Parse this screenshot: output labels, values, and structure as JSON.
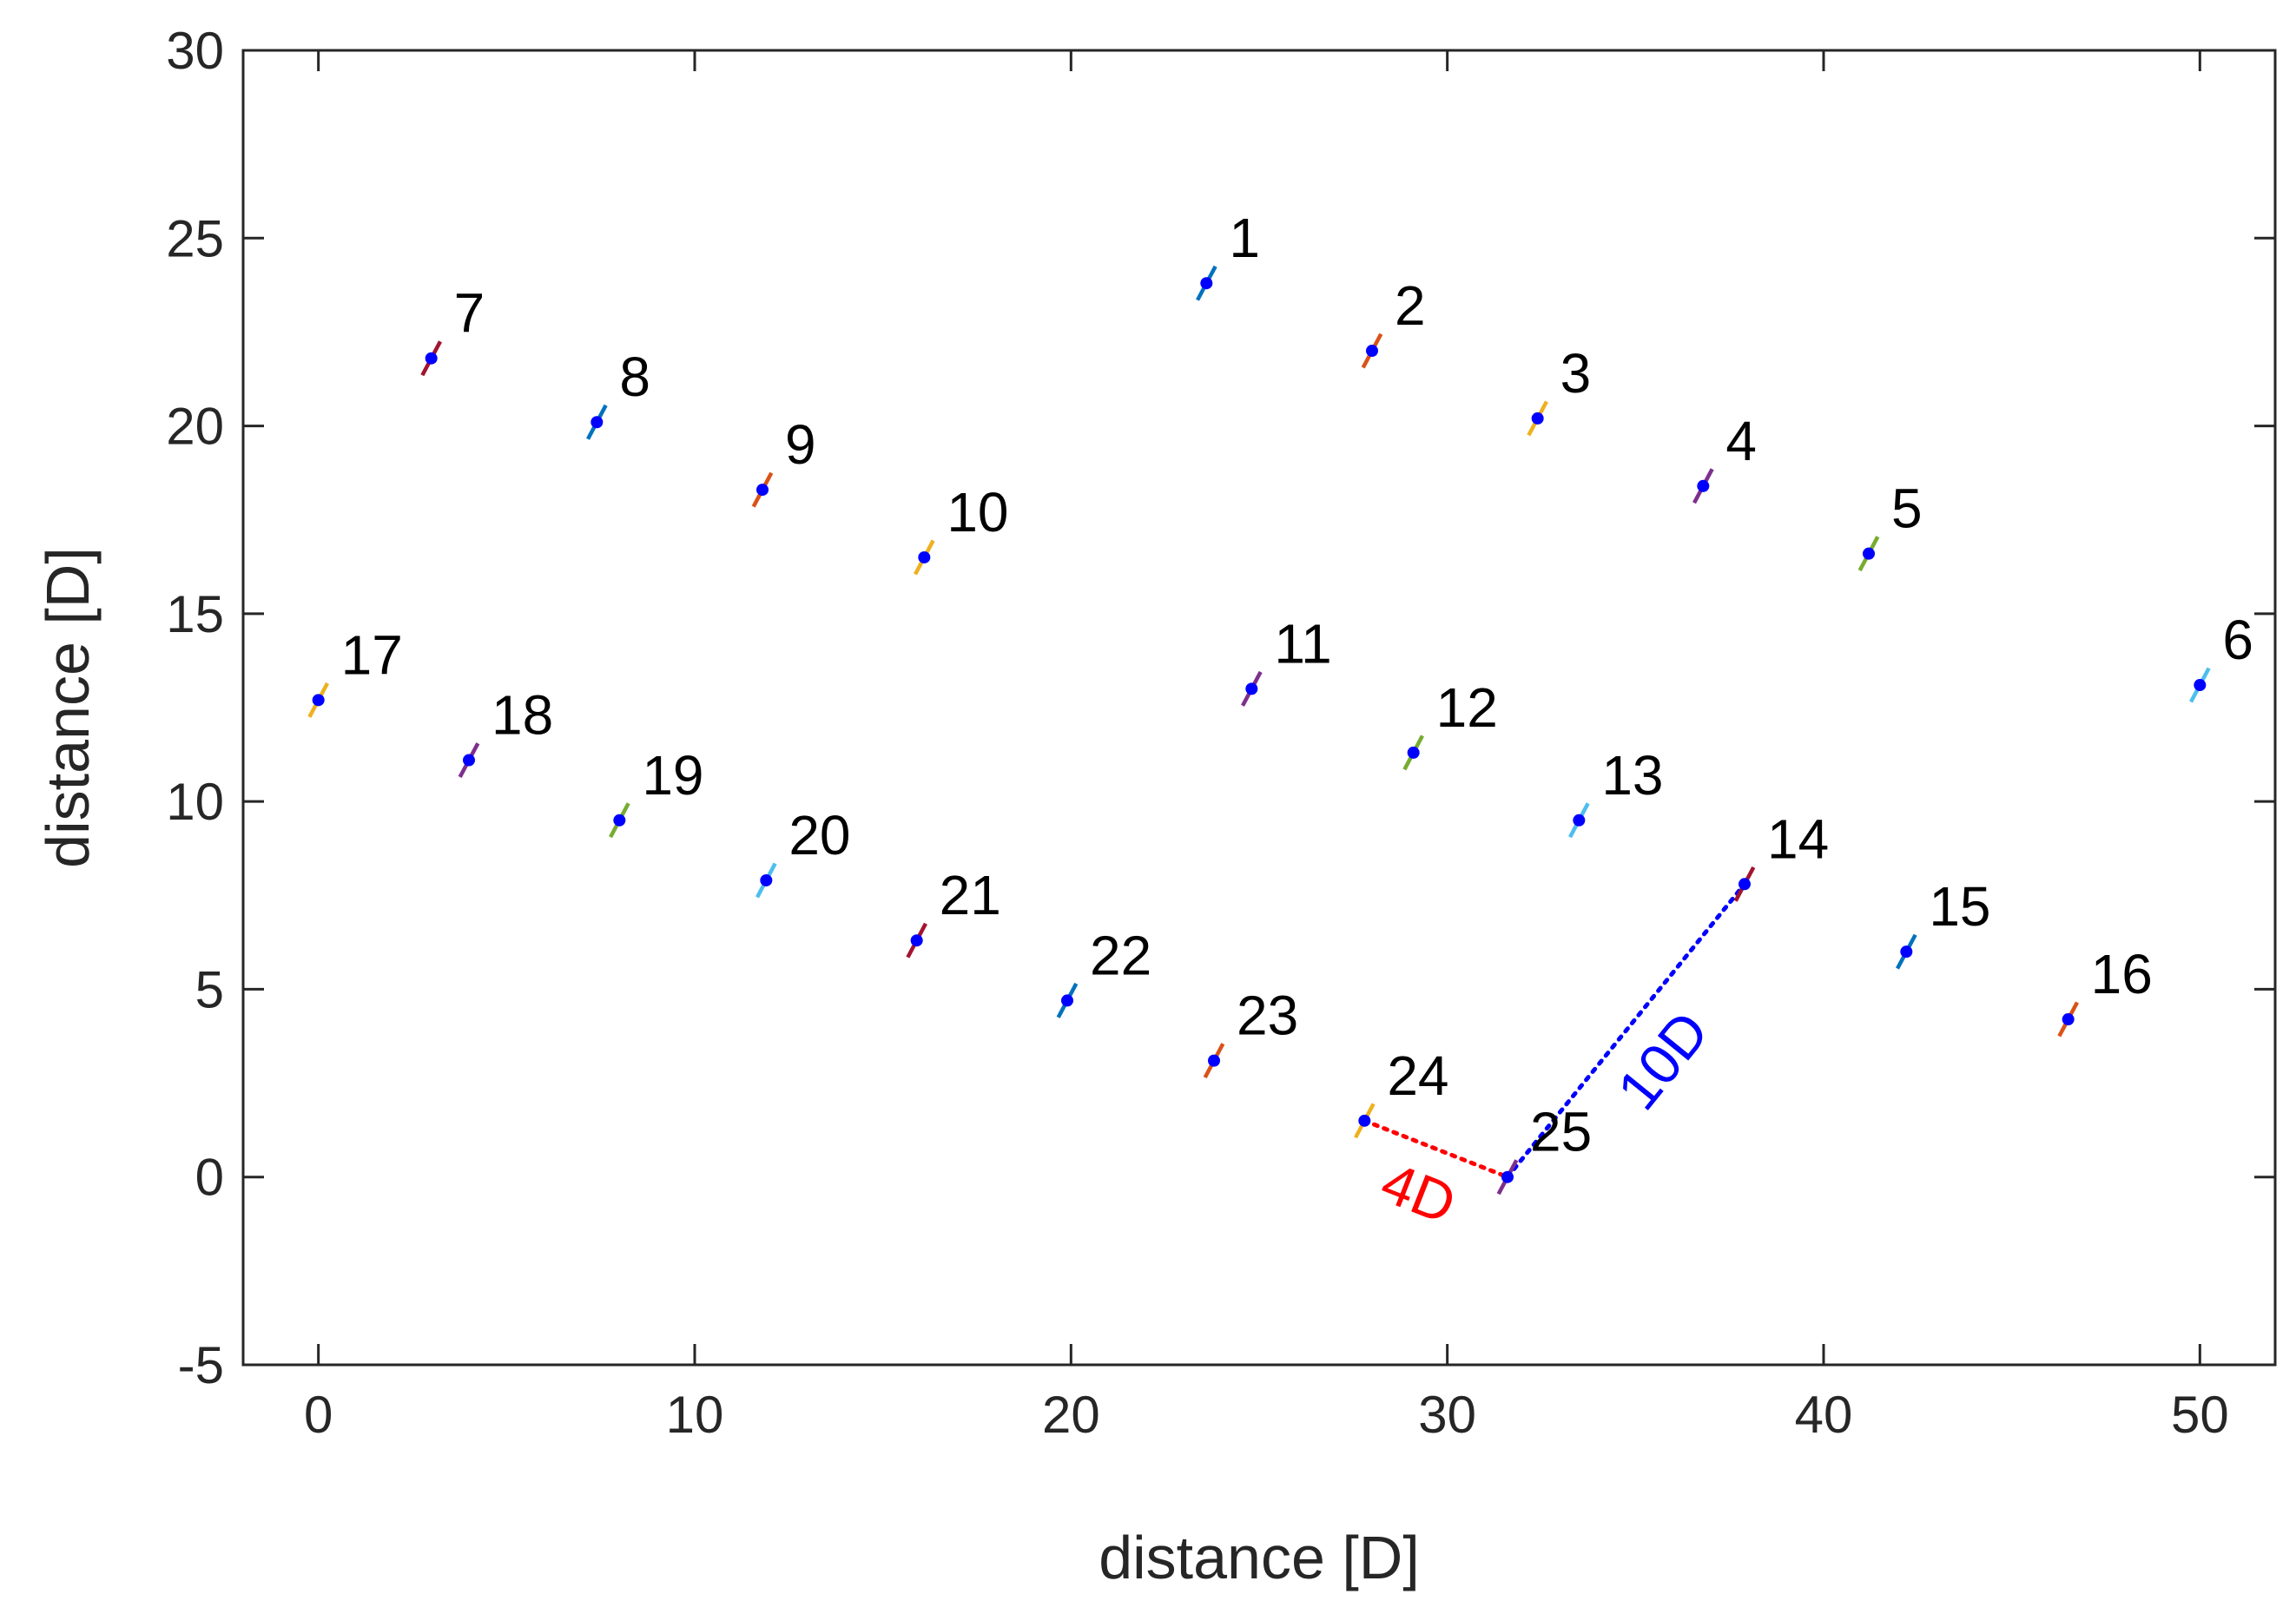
{
  "chart_data": {
    "type": "scatter",
    "xlabel": "distance [D]",
    "ylabel": "distance [D]",
    "xlim": [
      -2,
      52
    ],
    "ylim": [
      -5,
      30
    ],
    "xticks": [
      "0",
      "10",
      "20",
      "30",
      "40",
      "50"
    ],
    "xtick_values": [
      0,
      10,
      20,
      30,
      40,
      50
    ],
    "yticks": [
      "30",
      "25",
      "20",
      "15",
      "10",
      "5",
      "0",
      "-5"
    ],
    "ytick_values": [
      30,
      25,
      20,
      15,
      10,
      5,
      0,
      -5
    ],
    "grid": false,
    "marker_color": "#0000ff",
    "points": [
      {
        "label": "1",
        "x": 23.6,
        "y": 23.8,
        "color": "#0072bd"
      },
      {
        "label": "2",
        "x": 28.0,
        "y": 22.0,
        "color": "#d95319"
      },
      {
        "label": "3",
        "x": 32.4,
        "y": 20.2,
        "color": "#edb120"
      },
      {
        "label": "4",
        "x": 36.8,
        "y": 18.4,
        "color": "#7e2f8e"
      },
      {
        "label": "5",
        "x": 41.2,
        "y": 16.6,
        "color": "#77ac30"
      },
      {
        "label": "6",
        "x": 50.0,
        "y": 13.1,
        "color": "#4dbeee"
      },
      {
        "label": "7",
        "x": 3.0,
        "y": 21.8,
        "color": "#a2142f"
      },
      {
        "label": "8",
        "x": 7.4,
        "y": 20.1,
        "color": "#0072bd"
      },
      {
        "label": "9",
        "x": 11.8,
        "y": 18.3,
        "color": "#d95319"
      },
      {
        "label": "10",
        "x": 16.1,
        "y": 16.5,
        "color": "#edb120"
      },
      {
        "label": "11",
        "x": 24.8,
        "y": 13.0,
        "color": "#7e2f8e"
      },
      {
        "label": "12",
        "x": 29.1,
        "y": 11.3,
        "color": "#77ac30"
      },
      {
        "label": "13",
        "x": 33.5,
        "y": 9.5,
        "color": "#4dbeee"
      },
      {
        "label": "14",
        "x": 37.9,
        "y": 7.8,
        "color": "#a2142f"
      },
      {
        "label": "15",
        "x": 42.2,
        "y": 6.0,
        "color": "#0072bd"
      },
      {
        "label": "16",
        "x": 46.5,
        "y": 4.2,
        "color": "#d95319"
      },
      {
        "label": "17",
        "x": 0.0,
        "y": 12.7,
        "color": "#edb120"
      },
      {
        "label": "18",
        "x": 4.0,
        "y": 11.1,
        "color": "#7e2f8e"
      },
      {
        "label": "19",
        "x": 8.0,
        "y": 9.5,
        "color": "#77ac30"
      },
      {
        "label": "20",
        "x": 11.9,
        "y": 7.9,
        "color": "#4dbeee"
      },
      {
        "label": "21",
        "x": 15.9,
        "y": 6.3,
        "color": "#a2142f"
      },
      {
        "label": "22",
        "x": 19.9,
        "y": 4.7,
        "color": "#0072bd"
      },
      {
        "label": "23",
        "x": 23.8,
        "y": 3.1,
        "color": "#d95319"
      },
      {
        "label": "24",
        "x": 27.8,
        "y": 1.5,
        "color": "#edb120"
      },
      {
        "label": "25",
        "x": 31.6,
        "y": 0.0,
        "color": "#7e2f8e"
      }
    ],
    "annotations": [
      {
        "text": "4D",
        "from": 24,
        "to": 25,
        "color": "#ff0000"
      },
      {
        "text": "10D",
        "from": 25,
        "to": 14,
        "color": "#0000ff"
      }
    ]
  }
}
